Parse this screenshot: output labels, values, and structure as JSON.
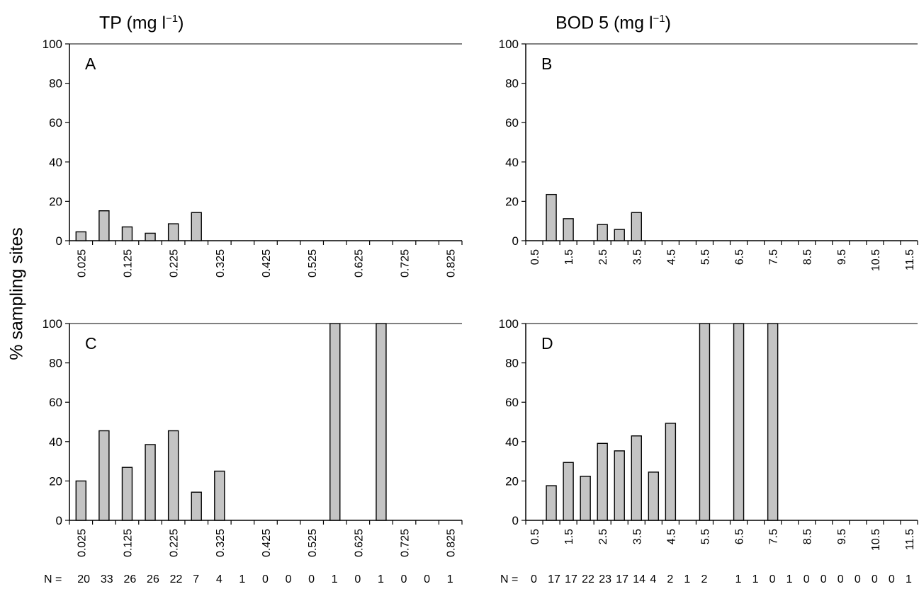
{
  "figure": {
    "col_titles": [
      {
        "label": "TP (mg l",
        "exp": "−1",
        "tail": ")"
      },
      {
        "label": "BOD 5 (mg l",
        "exp": "−1",
        "tail": ")"
      }
    ],
    "ylabel": "% sampling sites",
    "n_rows": [
      {
        "prefix": "N =",
        "values": [
          "20",
          "33",
          "26",
          "26",
          "22",
          "7",
          "4",
          "1",
          "0",
          "0",
          "0",
          "1",
          "0",
          "1",
          "0",
          "0",
          "1"
        ]
      },
      {
        "prefix": "N =",
        "values": [
          "0",
          "17",
          "17",
          "22",
          "23",
          "17",
          "14",
          "4",
          "2",
          "1",
          "2",
          "",
          "1",
          "1",
          "0",
          "1",
          "0",
          "0",
          "0",
          "0",
          "0",
          "0",
          "1"
        ]
      }
    ]
  },
  "chart_data": [
    {
      "type": "bar",
      "panel": "A",
      "ylim": [
        0,
        100
      ],
      "yticks": [
        0,
        20,
        40,
        60,
        80,
        100
      ],
      "tick_labels": [
        "0.025",
        "0.125",
        "0.225",
        "0.325",
        "0.425",
        "0.525",
        "0.625",
        "0.725",
        "0.825"
      ],
      "bin_start": 0.025,
      "bin_width": 0.05,
      "n_bins": 17,
      "values": [
        4.5,
        15.2,
        7,
        3.8,
        8.6,
        14.3,
        0,
        0,
        0,
        0,
        0,
        0,
        0,
        0,
        0,
        0,
        0
      ],
      "grid": false
    },
    {
      "type": "bar",
      "panel": "B",
      "ylim": [
        0,
        100
      ],
      "yticks": [
        0,
        20,
        40,
        60,
        80,
        100
      ],
      "tick_labels": [
        "0.5",
        "1.5",
        "2.5",
        "3.5",
        "4.5",
        "5.5",
        "6.5",
        "7.5",
        "8.5",
        "9.5",
        "10.5",
        "11.5"
      ],
      "bin_start": 0.5,
      "bin_width": 0.5,
      "n_bins": 23,
      "values": [
        0,
        23.5,
        11.2,
        0,
        8.2,
        5.7,
        14.3,
        0,
        0,
        0,
        0,
        0,
        0,
        0,
        0,
        0,
        0,
        0,
        0,
        0,
        0,
        0,
        0
      ],
      "grid": false
    },
    {
      "type": "bar",
      "panel": "C",
      "ylim": [
        0,
        100
      ],
      "yticks": [
        0,
        20,
        40,
        60,
        80,
        100
      ],
      "tick_labels": [
        "0.025",
        "0.125",
        "0.225",
        "0.325",
        "0.425",
        "0.525",
        "0.625",
        "0.725",
        "0.825"
      ],
      "bin_start": 0.025,
      "bin_width": 0.05,
      "n_bins": 17,
      "values": [
        20,
        45.5,
        26.9,
        38.5,
        45.5,
        14.3,
        25,
        0,
        0,
        0,
        0,
        100,
        0,
        100,
        0,
        0,
        0
      ],
      "grid": false
    },
    {
      "type": "bar",
      "panel": "D",
      "ylim": [
        0,
        100
      ],
      "yticks": [
        0,
        20,
        40,
        60,
        80,
        100
      ],
      "tick_labels": [
        "0.5",
        "1.5",
        "2.5",
        "3.5",
        "4.5",
        "5.5",
        "6.5",
        "7.5",
        "8.5",
        "9.5",
        "10.5",
        "11.5"
      ],
      "bin_start": 0.5,
      "bin_width": 0.5,
      "n_bins": 23,
      "values": [
        0,
        17.6,
        29.4,
        22.4,
        39.1,
        35.3,
        42.9,
        24.5,
        49.3,
        0,
        100,
        0,
        100,
        0,
        100,
        0,
        0,
        0,
        0,
        0,
        0,
        0,
        0
      ],
      "grid": false
    }
  ]
}
